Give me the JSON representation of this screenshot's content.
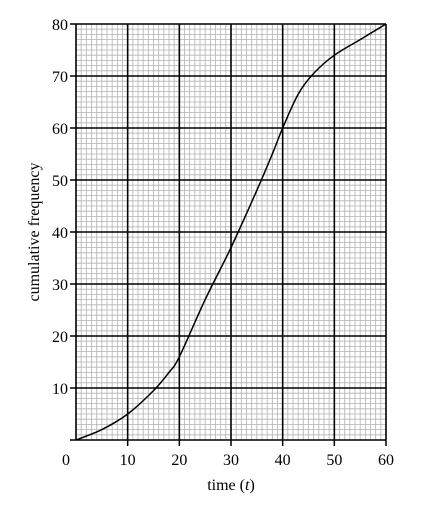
{
  "chart_data": {
    "type": "line",
    "title": "",
    "xlabel_prefix": "time (",
    "xlabel_var": "t",
    "xlabel_suffix": ")",
    "ylabel": "cumulative frequency",
    "xlim": [
      0,
      60
    ],
    "ylim": [
      0,
      80
    ],
    "x_major_step": 10,
    "y_major_step": 10,
    "x_minor_step": 1,
    "y_minor_step": 1,
    "x_tick_labels": [
      "0",
      "10",
      "20",
      "30",
      "40",
      "50",
      "60"
    ],
    "y_tick_labels": [
      "10",
      "20",
      "30",
      "40",
      "50",
      "60",
      "70",
      "80"
    ],
    "grid": true,
    "colors": {
      "minor_grid": "#b3b3b3",
      "major_grid": "#000000",
      "curve": "#000000",
      "background": "#ffffff"
    },
    "series": [
      {
        "x": [
          0,
          5,
          10,
          15,
          18,
          20,
          25,
          30,
          35,
          38,
          40,
          43,
          46,
          50,
          55,
          60
        ],
        "y": [
          0,
          2,
          5,
          9.5,
          13,
          16,
          27,
          37,
          48,
          55,
          60,
          66.5,
          70.5,
          74,
          77,
          80
        ]
      }
    ]
  }
}
